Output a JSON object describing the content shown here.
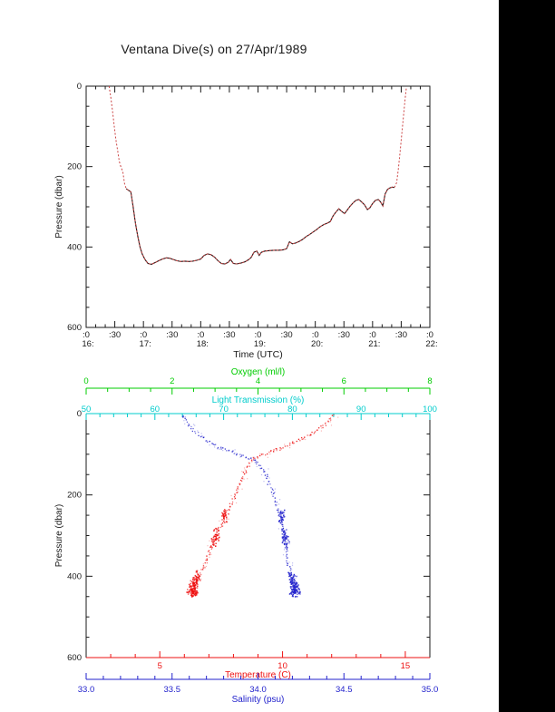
{
  "title": "Ventana Dive(s) on 27/Apr/1989",
  "colors": {
    "background": "#ffffff",
    "frame": "#1a1a1a",
    "side_bar": "#000000",
    "track_red": "#cc4444",
    "track_black": "#241212",
    "oxygen_green": "#00cc00",
    "light_cyan": "#00cccc",
    "temperature_red": "#ee1111",
    "salinity_blue": "#2222cc"
  },
  "top_plot": {
    "ylabel": "Pressure (dbar)",
    "xlabel": "Time (UTC)",
    "yticks": [
      {
        "v": 0,
        "label": "0"
      },
      {
        "v": 200,
        "label": "200"
      },
      {
        "v": 400,
        "label": "400"
      },
      {
        "v": 600,
        "label": "600"
      }
    ],
    "time_ticks": [
      {
        "t": 16.0,
        "top": ":0",
        "bottom": "16:"
      },
      {
        "t": 16.5,
        "top": ":30",
        "bottom": ""
      },
      {
        "t": 17.0,
        "top": ":0",
        "bottom": "17:"
      },
      {
        "t": 17.5,
        "top": ":30",
        "bottom": ""
      },
      {
        "t": 18.0,
        "top": ":0",
        "bottom": "18:"
      },
      {
        "t": 18.5,
        "top": ":30",
        "bottom": ""
      },
      {
        "t": 19.0,
        "top": ":0",
        "bottom": "19:"
      },
      {
        "t": 19.5,
        "top": ":30",
        "bottom": ""
      },
      {
        "t": 20.0,
        "top": ":0",
        "bottom": "20:"
      },
      {
        "t": 20.5,
        "top": ":30",
        "bottom": ""
      },
      {
        "t": 21.0,
        "top": ":0",
        "bottom": "21:"
      },
      {
        "t": 21.5,
        "top": ":30",
        "bottom": ""
      },
      {
        "t": 22.0,
        "top": ":0",
        "bottom": "22:"
      }
    ]
  },
  "bottom_plot": {
    "ylabel": "Pressure (dbar)",
    "yticks": [
      {
        "v": 0,
        "label": "0"
      },
      {
        "v": 200,
        "label": "200"
      },
      {
        "v": 400,
        "label": "400"
      },
      {
        "v": 600,
        "label": "600"
      }
    ]
  },
  "chart_data": [
    {
      "type": "line",
      "title": "Ventana Dive(s) on 27/Apr/1989",
      "xlabel": "Time (UTC)",
      "ylabel": "Pressure (dbar)",
      "xlim": [
        16,
        22
      ],
      "ylim": [
        600,
        0
      ],
      "x_minor_step_hours": 0.1667,
      "y_minor_step": 50,
      "series": [
        {
          "name": "dive-pressure-track",
          "style": "red-dotted-over-black-below-250dbar",
          "points": [
            [
              16.4,
              0
            ],
            [
              16.43,
              28
            ],
            [
              16.46,
              62
            ],
            [
              16.49,
              100
            ],
            [
              16.52,
              133
            ],
            [
              16.55,
              160
            ],
            [
              16.58,
              188
            ],
            [
              16.61,
              202
            ],
            [
              16.64,
              212
            ],
            [
              16.67,
              242
            ],
            [
              16.7,
              255
            ],
            [
              16.74,
              259
            ],
            [
              16.78,
              263
            ],
            [
              16.82,
              300
            ],
            [
              16.86,
              340
            ],
            [
              16.9,
              372
            ],
            [
              16.94,
              400
            ],
            [
              16.98,
              418
            ],
            [
              17.03,
              432
            ],
            [
              17.08,
              441
            ],
            [
              17.14,
              443
            ],
            [
              17.2,
              439
            ],
            [
              17.27,
              434
            ],
            [
              17.33,
              430
            ],
            [
              17.4,
              427
            ],
            [
              17.46,
              428
            ],
            [
              17.52,
              431
            ],
            [
              17.58,
              434
            ],
            [
              17.65,
              436
            ],
            [
              17.72,
              435
            ],
            [
              17.79,
              436
            ],
            [
              17.86,
              435
            ],
            [
              17.93,
              433
            ],
            [
              18.0,
              430
            ],
            [
              18.06,
              421
            ],
            [
              18.12,
              417
            ],
            [
              18.18,
              419
            ],
            [
              18.24,
              425
            ],
            [
              18.3,
              434
            ],
            [
              18.36,
              441
            ],
            [
              18.42,
              442
            ],
            [
              18.48,
              438
            ],
            [
              18.52,
              431
            ],
            [
              18.57,
              441
            ],
            [
              18.63,
              442
            ],
            [
              18.7,
              440
            ],
            [
              18.77,
              437
            ],
            [
              18.83,
              432
            ],
            [
              18.88,
              426
            ],
            [
              18.93,
              413
            ],
            [
              18.98,
              410
            ],
            [
              19.02,
              421
            ],
            [
              19.06,
              413
            ],
            [
              19.12,
              410
            ],
            [
              19.2,
              409
            ],
            [
              19.28,
              408
            ],
            [
              19.36,
              408
            ],
            [
              19.44,
              407
            ],
            [
              19.5,
              404
            ],
            [
              19.55,
              387
            ],
            [
              19.6,
              392
            ],
            [
              19.66,
              390
            ],
            [
              19.72,
              386
            ],
            [
              19.78,
              381
            ],
            [
              19.84,
              374
            ],
            [
              19.9,
              369
            ],
            [
              19.96,
              363
            ],
            [
              20.02,
              357
            ],
            [
              20.08,
              350
            ],
            [
              20.14,
              345
            ],
            [
              20.2,
              341
            ],
            [
              20.26,
              337
            ],
            [
              20.31,
              323
            ],
            [
              20.36,
              313
            ],
            [
              20.41,
              305
            ],
            [
              20.46,
              311
            ],
            [
              20.51,
              317
            ],
            [
              20.56,
              308
            ],
            [
              20.61,
              298
            ],
            [
              20.66,
              290
            ],
            [
              20.71,
              284
            ],
            [
              20.76,
              282
            ],
            [
              20.81,
              288
            ],
            [
              20.86,
              295
            ],
            [
              20.91,
              307
            ],
            [
              20.95,
              303
            ],
            [
              21.0,
              292
            ],
            [
              21.05,
              284
            ],
            [
              21.1,
              282
            ],
            [
              21.14,
              288
            ],
            [
              21.18,
              298
            ],
            [
              21.22,
              268
            ],
            [
              21.26,
              257
            ],
            [
              21.3,
              253
            ],
            [
              21.34,
              251
            ],
            [
              21.38,
              252
            ],
            [
              21.42,
              240
            ],
            [
              21.45,
              205
            ],
            [
              21.48,
              163
            ],
            [
              21.51,
              120
            ],
            [
              21.54,
              75
            ],
            [
              21.57,
              30
            ],
            [
              21.59,
              4
            ]
          ]
        }
      ]
    },
    {
      "type": "scatter",
      "ylabel": "Pressure (dbar)",
      "ylim": [
        600,
        0
      ],
      "y_minor_step": 50,
      "axes": [
        {
          "id": "oxygen",
          "name": "Oxygen (ml/l)",
          "position": "top-outer",
          "color": "#00cc00",
          "range": [
            0,
            8
          ],
          "ticks": [
            {
              "v": 0,
              "label": "0"
            },
            {
              "v": 2,
              "label": "2"
            },
            {
              "v": 4,
              "label": "4"
            },
            {
              "v": 6,
              "label": "6"
            },
            {
              "v": 8,
              "label": "8"
            }
          ],
          "minor_step": 0.5
        },
        {
          "id": "light",
          "name": "Light Transmission (%)",
          "position": "top-frame",
          "color": "#00cccc",
          "range": [
            50,
            100
          ],
          "ticks": [
            {
              "v": 50,
              "label": "50"
            },
            {
              "v": 60,
              "label": "60"
            },
            {
              "v": 70,
              "label": "70"
            },
            {
              "v": 80,
              "label": "80"
            },
            {
              "v": 90,
              "label": "90"
            },
            {
              "v": 100,
              "label": "100"
            }
          ],
          "minor_step": 2
        },
        {
          "id": "temperature",
          "name": "Temperature (C)",
          "position": "bottom-frame",
          "color": "#ee1111",
          "range": [
            2,
            16
          ],
          "ticks": [
            {
              "v": 5,
              "label": "5"
            },
            {
              "v": 10,
              "label": "10"
            },
            {
              "v": 15,
              "label": "15"
            }
          ],
          "minor_step": 1
        },
        {
          "id": "salinity",
          "name": "Salinity (psu)",
          "position": "bottom-outer",
          "color": "#2222cc",
          "range": [
            33,
            35
          ],
          "ticks": [
            {
              "v": 33.0,
              "label": "33.0"
            },
            {
              "v": 33.5,
              "label": "33.5"
            },
            {
              "v": 34.0,
              "label": "34.0"
            },
            {
              "v": 34.5,
              "label": "34.5"
            },
            {
              "v": 35.0,
              "label": "35.0"
            }
          ],
          "minor_step": 0.1
        }
      ],
      "series": [
        {
          "name": "temperature-profile",
          "axis": "temperature",
          "color": "#ee1111",
          "points": [
            [
              12.05,
              2
            ],
            [
              11.8,
              20
            ],
            [
              11.5,
              35
            ],
            [
              11.1,
              50
            ],
            [
              10.6,
              65
            ],
            [
              10.1,
              80
            ],
            [
              9.4,
              95
            ],
            [
              8.8,
              110
            ],
            [
              8.6,
              125
            ],
            [
              8.45,
              140
            ],
            [
              8.35,
              155
            ],
            [
              8.25,
              170
            ],
            [
              8.15,
              185
            ],
            [
              8.05,
              200
            ],
            [
              7.95,
              215
            ],
            [
              7.8,
              230
            ],
            [
              7.65,
              248
            ],
            [
              7.55,
              265
            ],
            [
              7.45,
              280
            ],
            [
              7.3,
              295
            ],
            [
              7.15,
              312
            ],
            [
              7.05,
              330
            ],
            [
              6.95,
              348
            ],
            [
              6.85,
              365
            ],
            [
              6.72,
              382
            ],
            [
              6.58,
              398
            ],
            [
              6.48,
              410
            ],
            [
              6.4,
              420
            ],
            [
              6.35,
              430
            ],
            [
              6.3,
              440
            ]
          ],
          "clusters": [
            {
              "v": 7.65,
              "p": 250,
              "n": 30,
              "rx": 3,
              "ry": 7
            },
            {
              "v": 7.3,
              "p": 296,
              "n": 22,
              "rx": 3,
              "ry": 7
            },
            {
              "v": 7.15,
              "p": 312,
              "n": 18,
              "rx": 3,
              "ry": 6
            },
            {
              "v": 6.5,
              "p": 400,
              "n": 18,
              "rx": 3,
              "ry": 6
            },
            {
              "v": 6.42,
              "p": 412,
              "n": 28,
              "rx": 3,
              "ry": 6
            },
            {
              "v": 6.35,
              "p": 428,
              "n": 62,
              "rx": 4,
              "ry": 7
            },
            {
              "v": 6.28,
              "p": 438,
              "n": 36,
              "rx": 5,
              "ry": 4
            }
          ]
        },
        {
          "name": "salinity-profile",
          "axis": "salinity",
          "color": "#2222cc",
          "points": [
            [
              33.56,
              2
            ],
            [
              33.58,
              20
            ],
            [
              33.61,
              35
            ],
            [
              33.65,
              50
            ],
            [
              33.7,
              65
            ],
            [
              33.76,
              80
            ],
            [
              33.86,
              95
            ],
            [
              33.96,
              110
            ],
            [
              34.0,
              125
            ],
            [
              34.03,
              140
            ],
            [
              34.05,
              155
            ],
            [
              34.06,
              170
            ],
            [
              34.08,
              185
            ],
            [
              34.09,
              200
            ],
            [
              34.1,
              215
            ],
            [
              34.11,
              230
            ],
            [
              34.13,
              248
            ],
            [
              34.14,
              265
            ],
            [
              34.145,
              280
            ],
            [
              34.15,
              295
            ],
            [
              34.155,
              312
            ],
            [
              34.16,
              330
            ],
            [
              34.165,
              348
            ],
            [
              34.17,
              365
            ],
            [
              34.18,
              382
            ],
            [
              34.19,
              398
            ],
            [
              34.195,
              410
            ],
            [
              34.2,
              420
            ],
            [
              34.21,
              430
            ],
            [
              34.22,
              440
            ]
          ],
          "clusters": [
            {
              "v": 34.13,
              "p": 250,
              "n": 30,
              "rx": 3,
              "ry": 7
            },
            {
              "v": 34.15,
              "p": 296,
              "n": 22,
              "rx": 3,
              "ry": 7
            },
            {
              "v": 34.16,
              "p": 312,
              "n": 18,
              "rx": 3,
              "ry": 6
            },
            {
              "v": 34.19,
              "p": 400,
              "n": 18,
              "rx": 3,
              "ry": 6
            },
            {
              "v": 34.2,
              "p": 415,
              "n": 28,
              "rx": 3,
              "ry": 6
            },
            {
              "v": 34.21,
              "p": 430,
              "n": 62,
              "rx": 4,
              "ry": 7
            },
            {
              "v": 34.22,
              "p": 438,
              "n": 30,
              "rx": 5,
              "ry": 4
            }
          ]
        }
      ]
    }
  ]
}
